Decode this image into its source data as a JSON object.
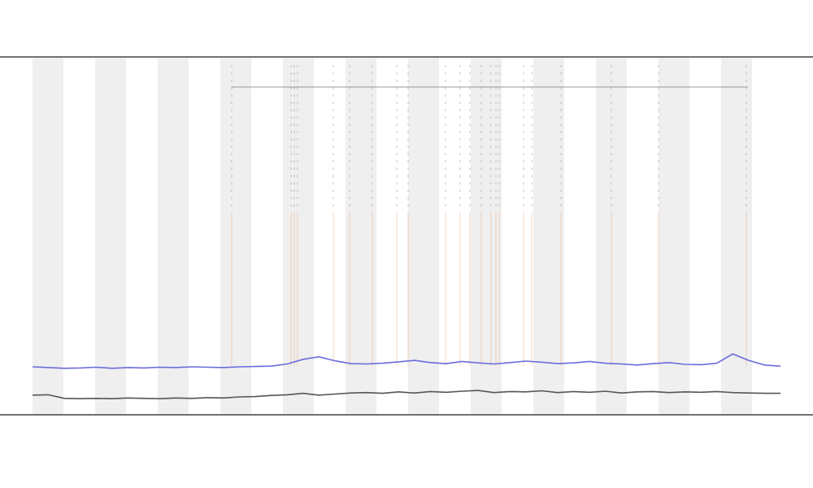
{
  "chart_data": {
    "type": "line",
    "categories": [
      null,
      null,
      null,
      null,
      null,
      null,
      null,
      null,
      null,
      null,
      null,
      null,
      null,
      null,
      null,
      null,
      null,
      null,
      null,
      null,
      null,
      null,
      null,
      null,
      null,
      null,
      null,
      null,
      null,
      null,
      null,
      null,
      null,
      null,
      null,
      null,
      null,
      null,
      null,
      null,
      null,
      null,
      null,
      null,
      null,
      null,
      null,
      null
    ],
    "series": [
      {
        "color": "#6b6bdc",
        "values": [
          13.4,
          13.2,
          13,
          13.1,
          13.3,
          13,
          13.2,
          13.1,
          13.3,
          13.2,
          13.4,
          13.3,
          13.2,
          13.4,
          13.5,
          13.6,
          14.2,
          15.5,
          16.2,
          15.1,
          14.3,
          14.2,
          14.4,
          14.8,
          15.2,
          14.6,
          14.3,
          14.9,
          14.5,
          14.2,
          14.6,
          15,
          14.7,
          14.3,
          14.5,
          14.9,
          14.4,
          14.2,
          13.9,
          14.3,
          14.6,
          14.1,
          14,
          14.4,
          17,
          15.2,
          13.9,
          13.6
        ]
      },
      {
        "color": "#555555",
        "values": [
          5.5,
          5.6,
          4.6,
          4.5,
          4.6,
          4.5,
          4.7,
          4.6,
          4.5,
          4.7,
          4.6,
          4.8,
          4.7,
          5,
          5.1,
          5.4,
          5.6,
          6,
          5.5,
          5.8,
          6.1,
          6.2,
          6,
          6.4,
          6.1,
          6.5,
          6.3,
          6.6,
          6.8,
          6.2,
          6.5,
          6.4,
          6.7,
          6.2,
          6.5,
          6.3,
          6.6,
          6.1,
          6.4,
          6.5,
          6.2,
          6.4,
          6.3,
          6.5,
          6.2,
          6.1,
          6,
          6
        ]
      }
    ],
    "ylim": [
      0,
      100
    ],
    "grid": false
  }
}
